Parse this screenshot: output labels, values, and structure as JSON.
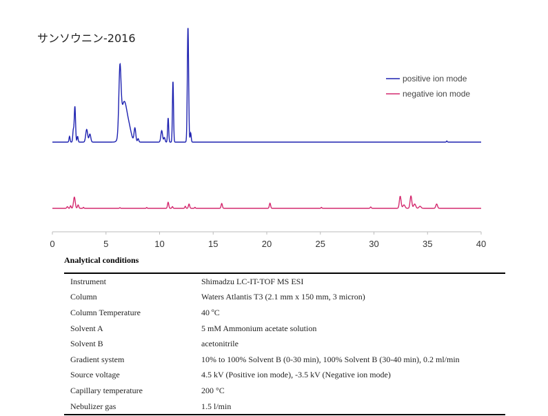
{
  "title": "サンソウニン-2016",
  "legend": [
    {
      "label": "positive ion mode",
      "color": "#1c20b0"
    },
    {
      "label": "negative ion mode",
      "color": "#d4286e"
    }
  ],
  "chart_data": {
    "type": "line",
    "title": "サンソウニン-2016",
    "xlabel": "",
    "ylabel": "",
    "xlim": [
      0,
      40
    ],
    "xticks": [
      0,
      5,
      10,
      15,
      20,
      25,
      30,
      35,
      40
    ],
    "grid": false,
    "legend_position": "top-right",
    "series": [
      {
        "name": "positive ion mode",
        "color": "#1c20b0",
        "peaks": [
          {
            "t": 1.6,
            "h": 0.05,
            "w": 0.05
          },
          {
            "t": 1.95,
            "h": 0.1,
            "w": 0.05
          },
          {
            "t": 2.1,
            "h": 0.31,
            "w": 0.06
          },
          {
            "t": 2.35,
            "h": 0.05,
            "w": 0.05
          },
          {
            "t": 3.2,
            "h": 0.11,
            "w": 0.09
          },
          {
            "t": 3.5,
            "h": 0.07,
            "w": 0.08
          },
          {
            "t": 6.3,
            "h": 0.55,
            "w": 0.1
          },
          {
            "t": 6.7,
            "h": 0.35,
            "w": 0.28
          },
          {
            "t": 7.2,
            "h": 0.08,
            "w": 0.2
          },
          {
            "t": 7.7,
            "h": 0.12,
            "w": 0.08
          },
          {
            "t": 8.0,
            "h": 0.03,
            "w": 0.06
          },
          {
            "t": 10.2,
            "h": 0.1,
            "w": 0.08
          },
          {
            "t": 10.45,
            "h": 0.04,
            "w": 0.06
          },
          {
            "t": 10.8,
            "h": 0.21,
            "w": 0.05
          },
          {
            "t": 11.25,
            "h": 0.53,
            "w": 0.05
          },
          {
            "t": 12.65,
            "h": 1.0,
            "w": 0.06
          },
          {
            "t": 12.9,
            "h": 0.08,
            "w": 0.05
          },
          {
            "t": 36.8,
            "h": 0.01,
            "w": 0.04
          }
        ]
      },
      {
        "name": "negative ion mode",
        "color": "#d4286e",
        "peaks": [
          {
            "t": 1.4,
            "h": 0.1,
            "w": 0.06
          },
          {
            "t": 1.7,
            "h": 0.15,
            "w": 0.05
          },
          {
            "t": 2.05,
            "h": 0.65,
            "w": 0.08
          },
          {
            "t": 2.4,
            "h": 0.2,
            "w": 0.06
          },
          {
            "t": 2.9,
            "h": 0.06,
            "w": 0.04
          },
          {
            "t": 6.3,
            "h": 0.04,
            "w": 0.04
          },
          {
            "t": 8.8,
            "h": 0.05,
            "w": 0.04
          },
          {
            "t": 10.8,
            "h": 0.35,
            "w": 0.06
          },
          {
            "t": 11.2,
            "h": 0.1,
            "w": 0.05
          },
          {
            "t": 12.4,
            "h": 0.12,
            "w": 0.05
          },
          {
            "t": 12.75,
            "h": 0.25,
            "w": 0.06
          },
          {
            "t": 13.3,
            "h": 0.06,
            "w": 0.04
          },
          {
            "t": 15.8,
            "h": 0.28,
            "w": 0.06
          },
          {
            "t": 20.3,
            "h": 0.3,
            "w": 0.06
          },
          {
            "t": 25.1,
            "h": 0.06,
            "w": 0.04
          },
          {
            "t": 29.7,
            "h": 0.08,
            "w": 0.05
          },
          {
            "t": 32.45,
            "h": 0.7,
            "w": 0.08
          },
          {
            "t": 32.8,
            "h": 0.2,
            "w": 0.1
          },
          {
            "t": 33.45,
            "h": 0.72,
            "w": 0.08
          },
          {
            "t": 33.8,
            "h": 0.25,
            "w": 0.1
          },
          {
            "t": 34.3,
            "h": 0.12,
            "w": 0.1
          },
          {
            "t": 35.85,
            "h": 0.25,
            "w": 0.08
          }
        ]
      }
    ]
  },
  "conditions": {
    "heading": "Analytical conditions",
    "rows": [
      {
        "label": "Instrument",
        "value": "Shimadzu LC-IT-TOF MS ESI"
      },
      {
        "label": "Column",
        "value": "Waters Atlantis T3 (2.1 mm x 150 mm, 3 micron)"
      },
      {
        "label": "Column Temperature",
        "value": "40 ºC"
      },
      {
        "label": "Solvent A",
        "value": "5 mM Ammonium acetate solution"
      },
      {
        "label": "Solvent B",
        "value": "acetonitrile"
      },
      {
        "label": "Gradient system",
        "value": "10% to 100% Solvent B (0-30 min), 100% Solvent B (30-40 min), 0.2 ml/min"
      },
      {
        "label": "Source voltage",
        "value": "4.5 kV (Positive ion mode), -3.5 kV (Negative ion mode)"
      },
      {
        "label": "Capillary temperature",
        "value": "200 °C"
      },
      {
        "label": "Nebulizer gas",
        "value": "1.5 l/min"
      }
    ]
  }
}
